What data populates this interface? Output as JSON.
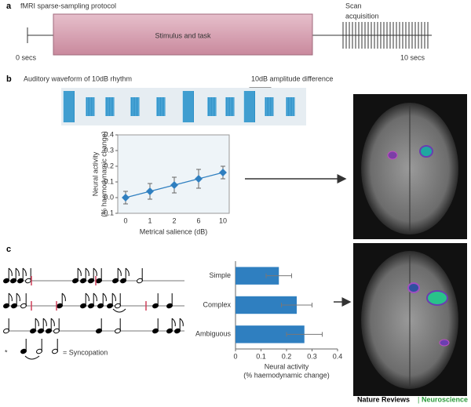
{
  "panel_a": {
    "label": "a",
    "title": "fMRI sparse-sampling protocol",
    "box": "Stimulus and task",
    "scan": [
      "Scan",
      "acquisition"
    ],
    "start": "0 secs",
    "end": "10 secs"
  },
  "panel_b": {
    "label": "b",
    "waveform_title": "Auditory waveform of 10dB rhythm",
    "annotation": "10dB amplitude difference"
  },
  "panel_c": {
    "label": "c",
    "syncopation": "= Syncopation",
    "star": "*"
  },
  "footer": {
    "journal": "Nature Reviews",
    "separator": "|",
    "section": "Neuroscience"
  },
  "chart_data": [
    {
      "type": "line",
      "categories": [
        "0",
        "1",
        "2",
        "6",
        "10"
      ],
      "values": [
        0,
        0.04,
        0.08,
        0.12,
        0.16
      ],
      "errors": [
        0.04,
        0.05,
        0.05,
        0.06,
        0.04
      ],
      "color": "#2f7fc0",
      "ylim": [
        -0.1,
        0.4
      ],
      "yticks": [
        -0.1,
        {
          "value": 0,
          "label": "0.0"
        },
        0.1,
        0.2,
        0.3,
        0.4
      ],
      "ylabel": [
        "Neural activity",
        "(% haemodynamic change)"
      ],
      "xlabel": "Metrical salience (dB)"
    },
    {
      "type": "hbar",
      "categories": [
        "Simple",
        "Complex",
        "Ambiguous"
      ],
      "values": [
        0.17,
        0.24,
        0.27
      ],
      "errors": [
        0.05,
        0.06,
        0.07
      ],
      "color": "#2f7fc0",
      "xlim": [
        0,
        0.4
      ],
      "xticks": [
        0,
        0.1,
        0.2,
        0.3,
        0.4
      ],
      "xlabel": [
        "Neural activity",
        "(% haemodynamic change)"
      ]
    }
  ]
}
